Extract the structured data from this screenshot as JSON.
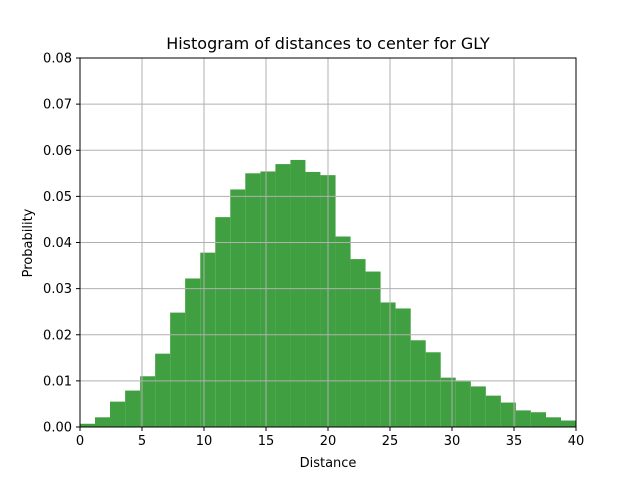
{
  "chart_data": {
    "type": "bar",
    "title": "Histogram of distances to center for GLY",
    "xlabel": "Distance",
    "ylabel": "Probability",
    "xlim": [
      0,
      40
    ],
    "ylim": [
      0,
      0.08
    ],
    "grid": true,
    "bar_color": "#409f40",
    "grid_color": "#b0b0b0",
    "xticks": [
      0,
      5,
      10,
      15,
      20,
      25,
      30,
      35,
      40
    ],
    "xtick_labels": [
      "0",
      "5",
      "10",
      "15",
      "20",
      "25",
      "30",
      "35",
      "40"
    ],
    "yticks": [
      0.0,
      0.01,
      0.02,
      0.03,
      0.04,
      0.05,
      0.06,
      0.07,
      0.08
    ],
    "ytick_labels": [
      "0.00",
      "0.01",
      "0.02",
      "0.03",
      "0.04",
      "0.05",
      "0.06",
      "0.07",
      "0.08"
    ],
    "bin_edges": [
      0.0,
      1.21,
      2.42,
      3.64,
      4.85,
      6.06,
      7.27,
      8.48,
      9.7,
      10.91,
      12.12,
      13.33,
      14.55,
      15.76,
      16.97,
      18.18,
      19.39,
      20.61,
      21.82,
      23.03,
      24.24,
      25.45,
      26.67,
      27.88,
      29.09,
      30.3,
      31.52,
      32.73,
      33.94,
      35.15,
      36.36,
      37.58,
      38.79,
      40.0
    ],
    "values": [
      0.0007,
      0.0021,
      0.0055,
      0.0079,
      0.011,
      0.0159,
      0.0248,
      0.0322,
      0.0378,
      0.0455,
      0.0515,
      0.055,
      0.0554,
      0.057,
      0.0579,
      0.0553,
      0.0546,
      0.0413,
      0.0364,
      0.0337,
      0.027,
      0.0257,
      0.0188,
      0.0162,
      0.0107,
      0.0099,
      0.0088,
      0.0068,
      0.0053,
      0.0036,
      0.0032,
      0.0021,
      0.0014
    ]
  }
}
